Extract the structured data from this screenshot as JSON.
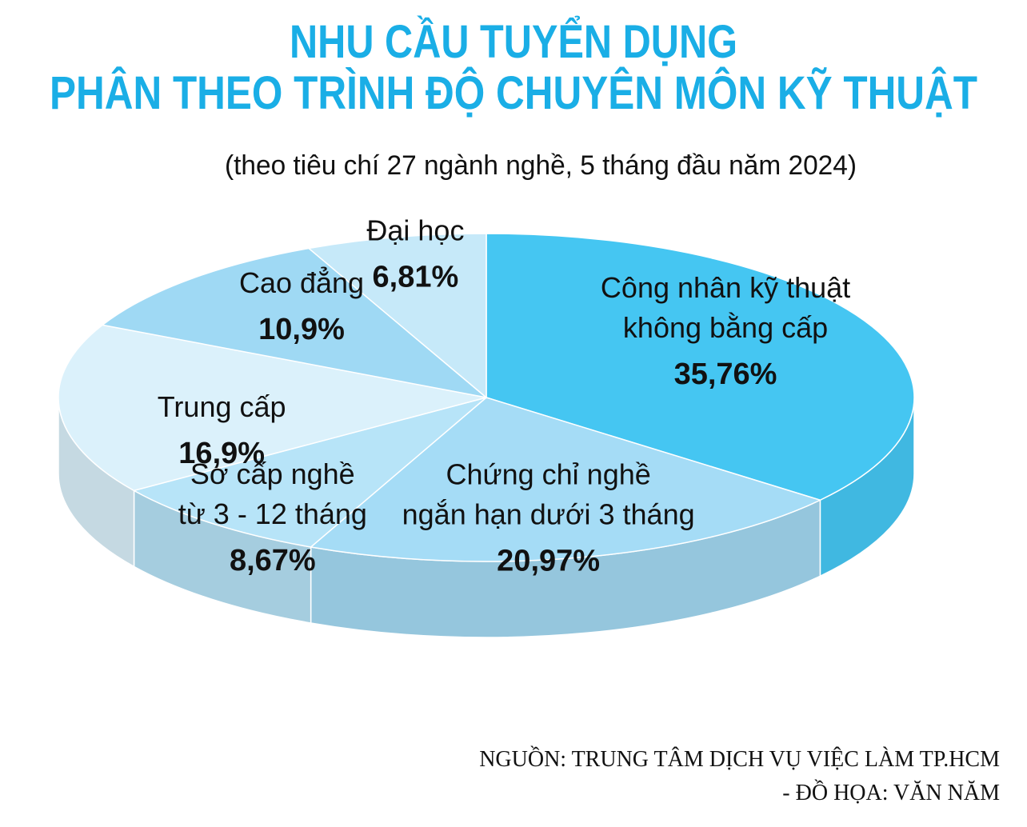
{
  "chart_data": {
    "type": "pie3d",
    "title": "NHU CẦU TUYỂN DỤNG\nPHÂN THEO TRÌNH ĐỘ CHUYÊN MÔN KỸ THUẬT",
    "subtitle": "(theo tiêu chí 27 ngành nghề, 5 tháng đầu năm 2024)",
    "categories": [
      "Công nhân kỹ thuật\nkhông bằng cấp",
      "Chứng chỉ nghề\nngắn hạn dưới 3 tháng",
      "Sơ cấp nghề\ntừ 3 - 12 tháng",
      "Trung cấp",
      "Cao đẳng",
      "Đại học"
    ],
    "values": [
      35.76,
      20.97,
      8.67,
      16.9,
      10.9,
      6.81
    ],
    "value_labels": [
      "35,76%",
      "20,97%",
      "8,67%",
      "16,9%",
      "10,9%",
      "6,81%"
    ],
    "colors": [
      "#45c6f2",
      "#a5dcf6",
      "#b7e4f8",
      "#dbf1fb",
      "#9fd9f4",
      "#c6e9f9"
    ],
    "source": "NGUỒN: TRUNG TÂM DỊCH VỤ VIỆC LÀM TP.HCM\n- ĐỒ HỌA: VĂN NĂM"
  }
}
